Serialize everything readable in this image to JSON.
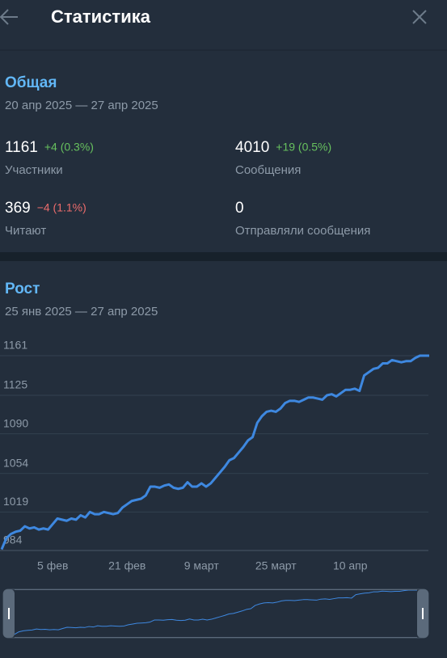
{
  "header": {
    "title": "Статистика"
  },
  "overview": {
    "title": "Общая",
    "period": "20 апр 2025 — 27 апр 2025",
    "stats": [
      {
        "value": "1161",
        "delta": "+4 (0.3%)",
        "trend": "up",
        "label": "Участники"
      },
      {
        "value": "4010",
        "delta": "+19 (0.5%)",
        "trend": "up",
        "label": "Сообщения"
      },
      {
        "value": "369",
        "delta": "−4 (1.1%)",
        "trend": "down",
        "label": "Читают"
      },
      {
        "value": "0",
        "label": "Отправляли сообщения"
      }
    ]
  },
  "growth": {
    "title": "Рост",
    "period": "25 янв 2025 — 27 апр 2025"
  },
  "chart_data": {
    "type": "line",
    "color": "#3e88e0",
    "grid": true,
    "categories": [
      null,
      null,
      null,
      null,
      null,
      null,
      null,
      null,
      null,
      null,
      null,
      "5 фев",
      null,
      null,
      null,
      null,
      null,
      null,
      null,
      null,
      null,
      null,
      null,
      null,
      null,
      null,
      null,
      "21 фев",
      null,
      null,
      null,
      null,
      null,
      null,
      null,
      null,
      null,
      null,
      null,
      null,
      null,
      null,
      null,
      "9 март",
      null,
      null,
      null,
      null,
      null,
      null,
      null,
      null,
      null,
      null,
      null,
      null,
      null,
      null,
      null,
      "25 март",
      null,
      null,
      null,
      null,
      null,
      null,
      null,
      null,
      null,
      null,
      null,
      null,
      null,
      null,
      null,
      "10 апр",
      null,
      null,
      null,
      null,
      null,
      null,
      null,
      null,
      null,
      null,
      null,
      null,
      null,
      null,
      null,
      null,
      null
    ],
    "values": [
      985,
      995,
      999,
      1001,
      1002,
      1006,
      1004,
      1005,
      1003,
      1004,
      1003,
      1008,
      1013,
      1012,
      1011,
      1013,
      1012,
      1016,
      1014,
      1019,
      1017,
      1017,
      1019,
      1018,
      1017,
      1018,
      1023,
      1026,
      1029,
      1030,
      1031,
      1034,
      1042,
      1042,
      1041,
      1043,
      1044,
      1041,
      1040,
      1041,
      1046,
      1042,
      1042,
      1045,
      1042,
      1045,
      1050,
      1055,
      1060,
      1066,
      1068,
      1073,
      1078,
      1084,
      1087,
      1100,
      1106,
      1110,
      1111,
      1110,
      1113,
      1118,
      1120,
      1120,
      1119,
      1121,
      1123,
      1123,
      1122,
      1121,
      1125,
      1126,
      1124,
      1127,
      1130,
      1130,
      1131,
      1129,
      1143,
      1146,
      1149,
      1150,
      1154,
      1154,
      1157,
      1156,
      1155,
      1156,
      1156,
      1159,
      1161,
      1161,
      1161
    ],
    "ylim": [
      984,
      1161
    ],
    "yticks": [
      984,
      1019,
      1054,
      1090,
      1125,
      1161
    ]
  }
}
